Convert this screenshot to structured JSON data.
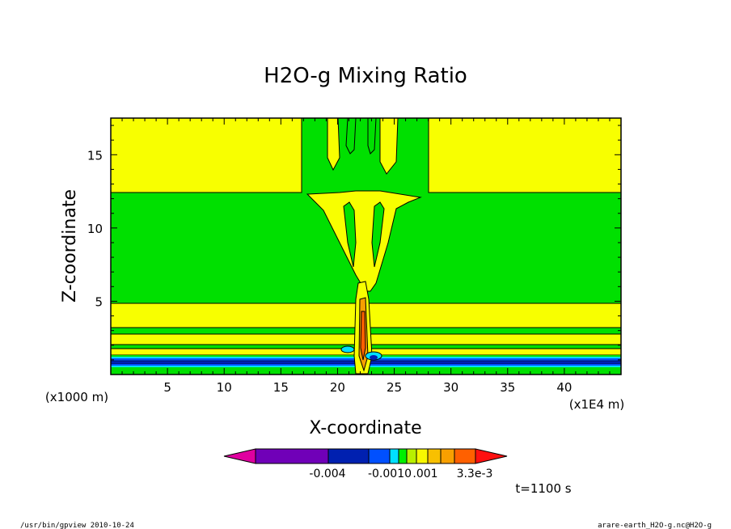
{
  "chart_data": {
    "type": "heatmap",
    "title": "H2O-g Mixing Ratio",
    "xlabel": "X-coordinate",
    "ylabel": "Z-coordinate",
    "x_unit_label": "(x1000 m)",
    "x_scale_label": "(x1E4 m)",
    "xlim": [
      0,
      45
    ],
    "ylim": [
      0,
      17.5
    ],
    "x_ticks": [
      "5",
      "10",
      "15",
      "20",
      "25",
      "30",
      "35",
      "40"
    ],
    "y_ticks": [
      "5",
      "10",
      "15"
    ],
    "colorbar_labels": [
      "-0.004",
      "-0.0010",
      ".001",
      "3.3e-3"
    ],
    "colorbar_colors": [
      "#e000a0",
      "#7000b8",
      "#0020b0",
      "#0050ff",
      "#00e0ff",
      "#00f000",
      "#b8f000",
      "#f8f800",
      "#f8c000",
      "#f8a000",
      "#ff6000",
      "#ff1010"
    ],
    "time_label": "t=1100 s",
    "footer_left": "/usr/bin/gpview  2010-10-24",
    "footer_right": "arare-earth_H2O-g.nc@H2O-g"
  }
}
